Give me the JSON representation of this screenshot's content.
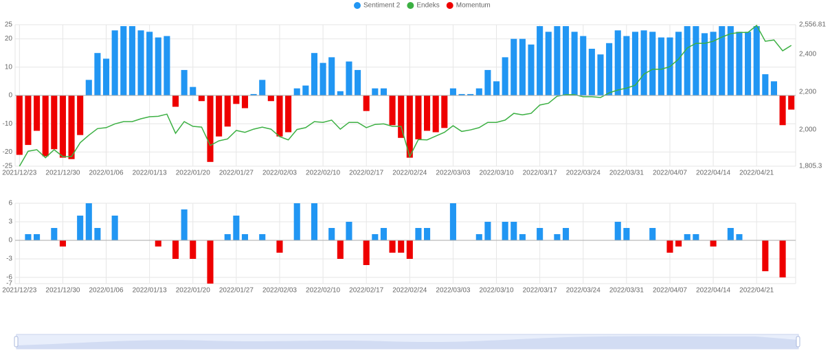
{
  "chart_data": [
    {
      "type": "bar",
      "categories": [
        "2021/12/23",
        null,
        null,
        null,
        null,
        "2021/12/30",
        null,
        null,
        null,
        null,
        "2022/01/06",
        null,
        null,
        null,
        null,
        "2022/01/13",
        null,
        null,
        null,
        null,
        "2022/01/20",
        null,
        null,
        null,
        null,
        "2022/01/27",
        null,
        null,
        null,
        null,
        "2022/02/03",
        null,
        null,
        null,
        null,
        "2022/02/10",
        null,
        null,
        null,
        null,
        "2022/02/17",
        null,
        null,
        null,
        null,
        "2022/02/24",
        null,
        null,
        null,
        null,
        "2022/03/03",
        null,
        null,
        null,
        null,
        "2022/03/10",
        null,
        null,
        null,
        null,
        "2022/03/17",
        null,
        null,
        null,
        null,
        "2022/03/24",
        null,
        null,
        null,
        null,
        "2022/03/31",
        null,
        null,
        null,
        null,
        "2022/04/07",
        null,
        null,
        null,
        null,
        "2022/04/14",
        null,
        null,
        null,
        null,
        "2022/04/21",
        null,
        null,
        null,
        null
      ],
      "series": [
        {
          "name": "Sentiment 2",
          "type": "bar",
          "color": "#2196f3",
          "negative_color": "#ee0000",
          "values": [
            -21,
            -17.5,
            -12.5,
            -21.5,
            -19,
            -22,
            -22.5,
            -14,
            5.5,
            15,
            13,
            23,
            24.5,
            24.5,
            23,
            22.5,
            20.5,
            21,
            -4,
            9,
            3,
            -2,
            -23.5,
            -14.5,
            -11,
            -3,
            -4.5,
            0.5,
            5.5,
            -2,
            -14.5,
            -13,
            2.5,
            3.5,
            15,
            11.5,
            13.5,
            1.5,
            12,
            9,
            -5.5,
            2.5,
            2.5,
            -10.5,
            -15,
            -22,
            -15.5,
            -12.5,
            -13,
            -11.5,
            2.5,
            0.5,
            0.5,
            2.5,
            9,
            5,
            13.5,
            20,
            20,
            18,
            24.5,
            22.5,
            24.5,
            24.5,
            22.5,
            21,
            16.5,
            14.5,
            18.5,
            23,
            21,
            22.5,
            23,
            22.5,
            20.5,
            20.5,
            22.5,
            24.5,
            24.5,
            22,
            22.5,
            24.5,
            24.5,
            22.5,
            22.5,
            24.5,
            7.5,
            5,
            -10.5,
            -5
          ]
        },
        {
          "name": "Endeks",
          "type": "line",
          "axis": "y2",
          "color": "#3cb043",
          "values": [
            1805,
            1885,
            1893,
            1850,
            1893,
            1856,
            1856,
            1930,
            1970,
            2005,
            2010,
            2030,
            2042,
            2042,
            2057,
            2068,
            2070,
            2082,
            1980,
            2042,
            2017,
            2013,
            1915,
            1940,
            1950,
            1995,
            1985,
            2002,
            2013,
            2002,
            1962,
            1945,
            2000,
            2010,
            2042,
            2038,
            2050,
            2002,
            2038,
            2038,
            2010,
            2027,
            2030,
            2017,
            2017,
            1856,
            1947,
            1945,
            1965,
            1985,
            2020,
            1990,
            1998,
            2010,
            2038,
            2038,
            2050,
            2086,
            2078,
            2086,
            2130,
            2140,
            2177,
            2185,
            2185,
            2174,
            2174,
            2170,
            2195,
            2210,
            2220,
            2235,
            2294,
            2320,
            2320,
            2334,
            2374,
            2433,
            2458,
            2458,
            2469,
            2491,
            2509,
            2516,
            2516,
            2553,
            2469,
            2476,
            2418,
            2447
          ]
        }
      ],
      "ylim": [
        -25,
        25
      ],
      "yticks": [
        25,
        20,
        10,
        0,
        -10,
        -20,
        -25
      ],
      "y2lim": [
        1805.3,
        2556.81
      ],
      "y2ticks": [
        {
          "value": 2556.81,
          "label": "2,556.81"
        },
        {
          "value": 2400,
          "label": "2,400"
        },
        {
          "value": 2200,
          "label": "2,200"
        },
        {
          "value": 2000,
          "label": "2,000"
        },
        {
          "value": 1805.3,
          "label": "1,805.3"
        }
      ],
      "grid": true
    },
    {
      "type": "bar",
      "categories": [
        "2021/12/23",
        null,
        null,
        null,
        null,
        "2021/12/30",
        null,
        null,
        null,
        null,
        "2022/01/06",
        null,
        null,
        null,
        null,
        "2022/01/13",
        null,
        null,
        null,
        null,
        "2022/01/20",
        null,
        null,
        null,
        null,
        "2022/01/27",
        null,
        null,
        null,
        null,
        "2022/02/03",
        null,
        null,
        null,
        null,
        "2022/02/10",
        null,
        null,
        null,
        null,
        "2022/02/17",
        null,
        null,
        null,
        null,
        "2022/02/24",
        null,
        null,
        null,
        null,
        "2022/03/03",
        null,
        null,
        null,
        null,
        "2022/03/10",
        null,
        null,
        null,
        null,
        "2022/03/17",
        null,
        null,
        null,
        null,
        "2022/03/24",
        null,
        null,
        null,
        null,
        "2022/03/31",
        null,
        null,
        null,
        null,
        "2022/04/07",
        null,
        null,
        null,
        null,
        "2022/04/14",
        null,
        null,
        null,
        null,
        "2022/04/21",
        null,
        null,
        null,
        null
      ],
      "series": [
        {
          "name": "Momentum",
          "type": "bar",
          "color": "#ee0000",
          "positive_color": "#2196f3",
          "values": [
            null,
            1,
            1,
            null,
            2,
            -1,
            null,
            4,
            6,
            2,
            null,
            4,
            null,
            null,
            null,
            null,
            -1,
            null,
            -3,
            5,
            -3,
            null,
            -7,
            null,
            1,
            4,
            1,
            null,
            1,
            null,
            -2,
            null,
            6,
            null,
            6,
            null,
            2,
            -3,
            3,
            null,
            -4,
            1,
            2,
            -2,
            -2,
            -3,
            2,
            2,
            null,
            null,
            6,
            null,
            null,
            1,
            3,
            null,
            3,
            3,
            1,
            null,
            2,
            null,
            1,
            2,
            null,
            null,
            null,
            null,
            null,
            3,
            2,
            null,
            null,
            2,
            null,
            -2,
            -1,
            1,
            1,
            null,
            -1,
            null,
            2,
            1,
            null,
            null,
            -5,
            null,
            -6,
            null
          ]
        }
      ],
      "ylim": [
        -7,
        6
      ],
      "yticks": [
        6,
        3,
        0,
        -3,
        -6,
        -7
      ],
      "grid": true
    }
  ]
}
